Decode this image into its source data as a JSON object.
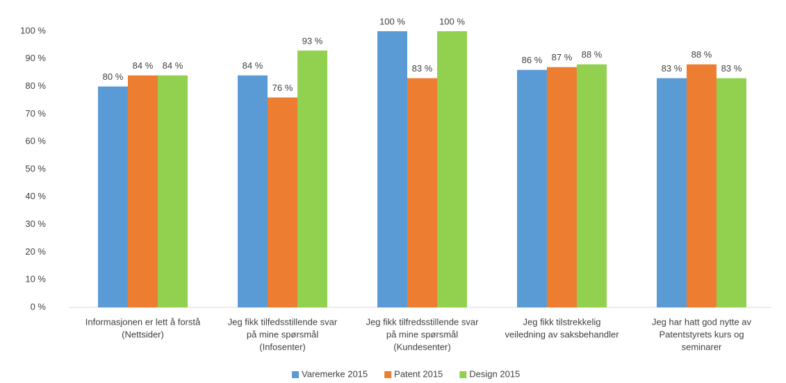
{
  "chart_data": {
    "type": "bar",
    "categories": [
      [
        "Informasjonen er lett å forstå",
        "(Nettsider)"
      ],
      [
        "Jeg fikk tilfedsstillende svar",
        "på mine spørsmål",
        "(Infosenter)"
      ],
      [
        "Jeg fikk tilfredsstillende svar",
        "på mine spørsmål",
        "(Kundesenter)"
      ],
      [
        "Jeg fikk tilstrekkelig",
        "veiledning av saksbehandler"
      ],
      [
        "Jeg har hatt god nytte av",
        "Patentstyrets kurs og",
        "seminarer"
      ]
    ],
    "series": [
      {
        "name": "Varemerke 2015",
        "color": "#5b9bd5",
        "values": [
          80,
          84,
          100,
          86,
          83
        ],
        "value_labels": [
          "80 %",
          "84 %",
          "100 %",
          "86 %",
          "83 %"
        ]
      },
      {
        "name": "Patent 2015",
        "color": "#ed7d31",
        "values": [
          84,
          76,
          83,
          87,
          88
        ],
        "value_labels": [
          "84 %",
          "76 %",
          "83 %",
          "87 %",
          "88 %"
        ]
      },
      {
        "name": "Design 2015",
        "color": "#92d050",
        "values": [
          84,
          93,
          100,
          88,
          83
        ],
        "value_labels": [
          "84 %",
          "93 %",
          "100 %",
          "88 %",
          "83 %"
        ]
      }
    ],
    "ylim": [
      0,
      100
    ],
    "yticks": [
      {
        "value": 0,
        "label": "0 %"
      },
      {
        "value": 10,
        "label": "10 %"
      },
      {
        "value": 20,
        "label": "20 %"
      },
      {
        "value": 30,
        "label": "30 %"
      },
      {
        "value": 40,
        "label": "40 %"
      },
      {
        "value": 50,
        "label": "50 %"
      },
      {
        "value": 60,
        "label": "60 %"
      },
      {
        "value": 70,
        "label": "70 %"
      },
      {
        "value": 80,
        "label": "80 %"
      },
      {
        "value": 90,
        "label": "90 %"
      },
      {
        "value": 100,
        "label": "100 %"
      }
    ],
    "grid": false,
    "legend": "bottom"
  }
}
